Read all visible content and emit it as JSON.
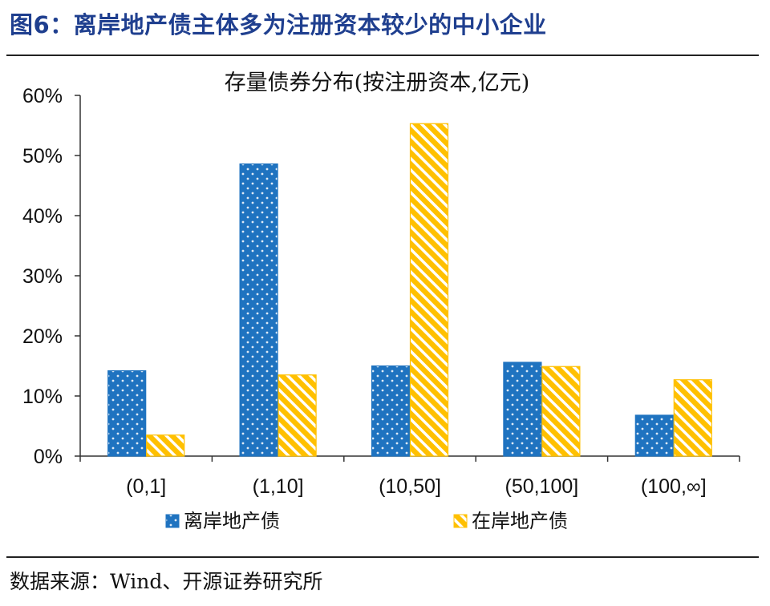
{
  "figure": {
    "title": "图6：离岸地产债主体多为注册资本较少的中小企业",
    "source": "数据来源：Wind、开源证券研究所"
  },
  "chart_data": {
    "type": "bar",
    "title": "存量债券分布(按注册资本,亿元)",
    "categories": [
      "(0,1]",
      "(1,10]",
      "(10,50]",
      "(50,100]",
      "(100,∞]"
    ],
    "series": [
      {
        "name": "离岸地产债",
        "values": [
          14.2,
          48.6,
          15.0,
          15.6,
          6.8
        ],
        "color": "#1f73c0",
        "pattern": "dots"
      },
      {
        "name": "在岸地产债",
        "values": [
          3.5,
          13.5,
          55.3,
          14.9,
          12.7
        ],
        "color": "#ffc000",
        "pattern": "diagonal-stripes"
      }
    ],
    "ylim": [
      0,
      60
    ],
    "yticks": [
      "0%",
      "10%",
      "20%",
      "30%",
      "40%",
      "50%",
      "60%"
    ],
    "xlabel": "",
    "ylabel": "",
    "grid": false,
    "legend_position": "bottom"
  }
}
